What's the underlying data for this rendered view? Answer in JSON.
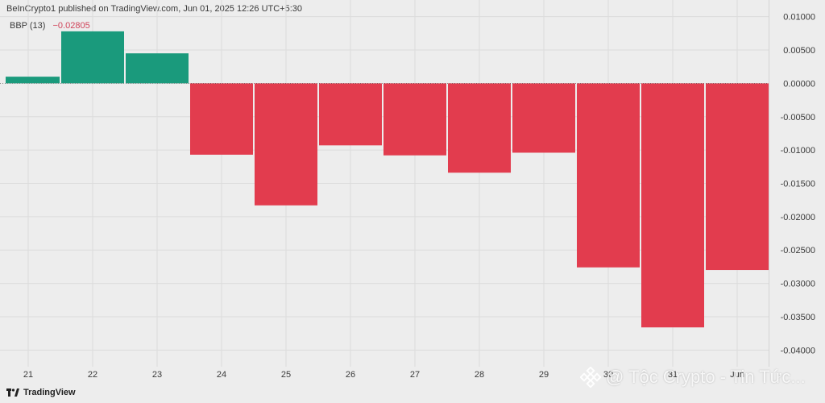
{
  "header": {
    "published": "BeInCrypto1 published on TradingView.com, Jun 01, 2025 12:26 UTC+5:30",
    "indicator_name": "BBP (13)",
    "indicator_value": "−0.02805"
  },
  "branding": {
    "logo_icon": "tradingview-logo-icon",
    "logo_text": "TradingView",
    "watermark_icon": "binance-logo-icon",
    "watermark_text": "@ Tộc Crypto - Tin Tức..."
  },
  "colors": {
    "positive": "#1a9a7c",
    "negative": "#e23c4e",
    "background": "#ededed",
    "grid": "#dcdcdc"
  },
  "chart_data": {
    "type": "bar",
    "categories": [
      "21",
      "22",
      "23",
      "24",
      "25",
      "26",
      "27",
      "28",
      "29",
      "30",
      "31",
      "Jun"
    ],
    "values": [
      0.001,
      0.0078,
      0.0045,
      -0.0107,
      -0.0183,
      -0.0093,
      -0.0108,
      -0.0134,
      -0.0104,
      -0.0276,
      -0.0366,
      -0.028
    ],
    "ylim": [
      -0.0425,
      0.0125
    ],
    "yticks": [
      "0.01000",
      "0.00500",
      "0.00000",
      "-0.00500",
      "-0.01000",
      "-0.01500",
      "-0.02000",
      "-0.02500",
      "-0.03000",
      "-0.03500",
      "-0.04000"
    ],
    "ytick_values": [
      0.01,
      0.005,
      0,
      -0.005,
      -0.01,
      -0.015,
      -0.02,
      -0.025,
      -0.03,
      -0.035,
      -0.04
    ],
    "grid": true
  }
}
